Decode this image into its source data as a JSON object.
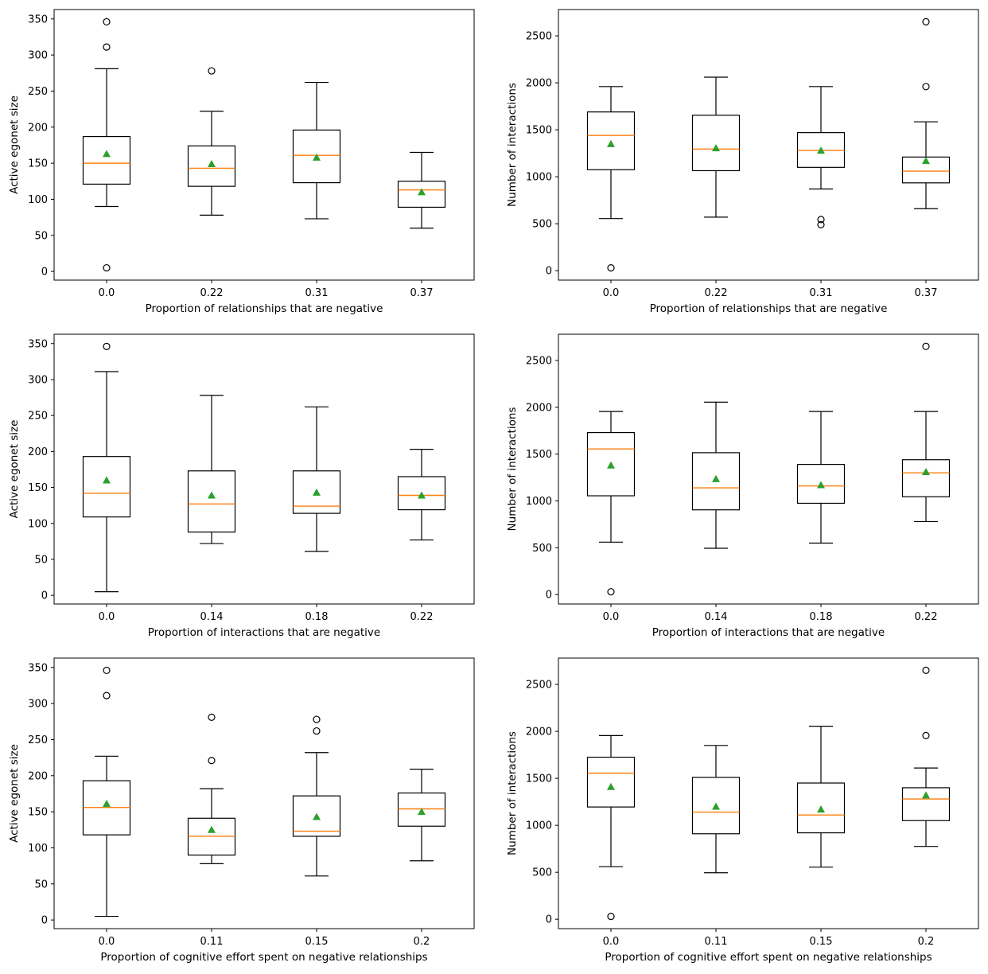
{
  "chart_data": [
    {
      "type": "box",
      "xlabel": "Proportion of relationships that are negative",
      "ylabel": "Active egonet size",
      "categories": [
        "0.0",
        "0.22",
        "0.31",
        "0.37"
      ],
      "ylim": [
        -12,
        363
      ],
      "yticks": [
        0,
        50,
        100,
        150,
        200,
        250,
        300,
        350
      ],
      "boxes": [
        {
          "whisker_low": 90,
          "q1": 121,
          "median": 150,
          "q3": 187,
          "whisker_high": 281,
          "mean": 163,
          "outliers": [
            5,
            311,
            346
          ]
        },
        {
          "whisker_low": 78,
          "q1": 118,
          "median": 143,
          "q3": 174,
          "whisker_high": 222,
          "mean": 149,
          "outliers": [
            278
          ]
        },
        {
          "whisker_low": 73,
          "q1": 123,
          "median": 161,
          "q3": 196,
          "whisker_high": 262,
          "mean": 158,
          "outliers": []
        },
        {
          "whisker_low": 60,
          "q1": 89,
          "median": 113,
          "q3": 125,
          "whisker_high": 165,
          "mean": 110,
          "outliers": []
        }
      ]
    },
    {
      "type": "box",
      "xlabel": "Proportion of relationships that are negative",
      "ylabel": "Number of interactions",
      "categories": [
        "0.0",
        "0.22",
        "0.31",
        "0.37"
      ],
      "ylim": [
        -100,
        2780
      ],
      "yticks": [
        0,
        500,
        1000,
        1500,
        2000,
        2500
      ],
      "boxes": [
        {
          "whisker_low": 555,
          "q1": 1075,
          "median": 1440,
          "q3": 1690,
          "whisker_high": 1960,
          "mean": 1350,
          "outliers": [
            30
          ]
        },
        {
          "whisker_low": 570,
          "q1": 1065,
          "median": 1295,
          "q3": 1655,
          "whisker_high": 2060,
          "mean": 1305,
          "outliers": []
        },
        {
          "whisker_low": 870,
          "q1": 1100,
          "median": 1280,
          "q3": 1470,
          "whisker_high": 1960,
          "mean": 1280,
          "outliers": [
            490,
            545
          ]
        },
        {
          "whisker_low": 660,
          "q1": 935,
          "median": 1060,
          "q3": 1210,
          "whisker_high": 1585,
          "mean": 1170,
          "outliers": [
            1960,
            2650
          ]
        }
      ]
    },
    {
      "type": "box",
      "xlabel": "Proportion of interactions that are negative",
      "ylabel": "Active egonet size",
      "categories": [
        "0.0",
        "0.14",
        "0.18",
        "0.22"
      ],
      "ylim": [
        -12,
        363
      ],
      "yticks": [
        0,
        50,
        100,
        150,
        200,
        250,
        300,
        350
      ],
      "boxes": [
        {
          "whisker_low": 5,
          "q1": 109,
          "median": 142,
          "q3": 193,
          "whisker_high": 311,
          "mean": 160,
          "outliers": [
            346
          ]
        },
        {
          "whisker_low": 72,
          "q1": 88,
          "median": 127,
          "q3": 173,
          "whisker_high": 278,
          "mean": 139,
          "outliers": []
        },
        {
          "whisker_low": 61,
          "q1": 114,
          "median": 124,
          "q3": 173,
          "whisker_high": 262,
          "mean": 143,
          "outliers": []
        },
        {
          "whisker_low": 77,
          "q1": 119,
          "median": 139,
          "q3": 165,
          "whisker_high": 203,
          "mean": 139,
          "outliers": []
        }
      ]
    },
    {
      "type": "box",
      "xlabel": "Proportion of interactions that are negative",
      "ylabel": "Number of interactions",
      "categories": [
        "0.0",
        "0.14",
        "0.18",
        "0.22"
      ],
      "ylim": [
        -100,
        2780
      ],
      "yticks": [
        0,
        500,
        1000,
        1500,
        2000,
        2500
      ],
      "boxes": [
        {
          "whisker_low": 560,
          "q1": 1055,
          "median": 1555,
          "q3": 1730,
          "whisker_high": 1955,
          "mean": 1380,
          "outliers": [
            30
          ]
        },
        {
          "whisker_low": 495,
          "q1": 905,
          "median": 1140,
          "q3": 1515,
          "whisker_high": 2055,
          "mean": 1235,
          "outliers": []
        },
        {
          "whisker_low": 550,
          "q1": 975,
          "median": 1160,
          "q3": 1390,
          "whisker_high": 1955,
          "mean": 1170,
          "outliers": []
        },
        {
          "whisker_low": 780,
          "q1": 1045,
          "median": 1300,
          "q3": 1440,
          "whisker_high": 1955,
          "mean": 1310,
          "outliers": [
            2650
          ]
        }
      ]
    },
    {
      "type": "box",
      "xlabel": "Proportion of cognitive effort spent on negative relationships",
      "ylabel": "Active egonet size",
      "categories": [
        "0.0",
        "0.11",
        "0.15",
        "0.2"
      ],
      "ylim": [
        -12,
        363
      ],
      "yticks": [
        0,
        50,
        100,
        150,
        200,
        250,
        300,
        350
      ],
      "boxes": [
        {
          "whisker_low": 5,
          "q1": 118,
          "median": 156,
          "q3": 193,
          "whisker_high": 227,
          "mean": 161,
          "outliers": [
            311,
            346
          ]
        },
        {
          "whisker_low": 78,
          "q1": 90,
          "median": 116,
          "q3": 141,
          "whisker_high": 182,
          "mean": 125,
          "outliers": [
            221,
            281
          ]
        },
        {
          "whisker_low": 61,
          "q1": 116,
          "median": 123,
          "q3": 172,
          "whisker_high": 232,
          "mean": 143,
          "outliers": [
            262,
            278
          ]
        },
        {
          "whisker_low": 82,
          "q1": 130,
          "median": 154,
          "q3": 176,
          "whisker_high": 209,
          "mean": 150,
          "outliers": []
        }
      ]
    },
    {
      "type": "box",
      "xlabel": "Proportion of cognitive effort spent on negative relationships",
      "ylabel": "Number of interactions",
      "categories": [
        "0.0",
        "0.11",
        "0.15",
        "0.2"
      ],
      "ylim": [
        -100,
        2780
      ],
      "yticks": [
        0,
        500,
        1000,
        1500,
        2000,
        2500
      ],
      "boxes": [
        {
          "whisker_low": 560,
          "q1": 1195,
          "median": 1555,
          "q3": 1725,
          "whisker_high": 1955,
          "mean": 1410,
          "outliers": [
            30
          ]
        },
        {
          "whisker_low": 495,
          "q1": 910,
          "median": 1140,
          "q3": 1510,
          "whisker_high": 1850,
          "mean": 1200,
          "outliers": []
        },
        {
          "whisker_low": 555,
          "q1": 920,
          "median": 1110,
          "q3": 1450,
          "whisker_high": 2055,
          "mean": 1170,
          "outliers": []
        },
        {
          "whisker_low": 775,
          "q1": 1050,
          "median": 1280,
          "q3": 1400,
          "whisker_high": 1610,
          "mean": 1320,
          "outliers": [
            1955,
            2650
          ]
        }
      ]
    }
  ],
  "colors": {
    "box": "#000000",
    "median": "#ff7f0e",
    "mean": "#2ca02c"
  },
  "markers": {
    "mean": "triangle",
    "outlier": "circle"
  }
}
